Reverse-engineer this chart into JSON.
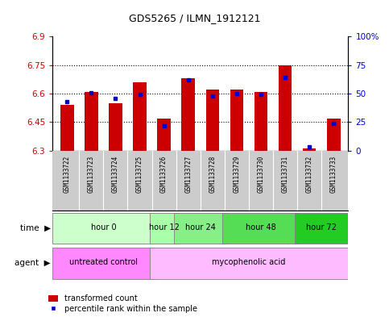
{
  "title": "GDS5265 / ILMN_1912121",
  "samples": [
    "GSM1133722",
    "GSM1133723",
    "GSM1133724",
    "GSM1133725",
    "GSM1133726",
    "GSM1133727",
    "GSM1133728",
    "GSM1133729",
    "GSM1133730",
    "GSM1133731",
    "GSM1133732",
    "GSM1133733"
  ],
  "transformed_count": [
    6.54,
    6.61,
    6.55,
    6.66,
    6.47,
    6.68,
    6.62,
    6.62,
    6.61,
    6.75,
    6.31,
    6.47
  ],
  "percentile_rank": [
    43,
    51,
    46,
    49,
    22,
    62,
    48,
    50,
    49,
    64,
    3,
    24
  ],
  "ylim_left": [
    6.3,
    6.9
  ],
  "ylim_right": [
    0,
    100
  ],
  "yticks_left": [
    6.3,
    6.45,
    6.6,
    6.75,
    6.9
  ],
  "yticks_right": [
    0,
    25,
    50,
    75,
    100
  ],
  "ytick_labels_left": [
    "6.3",
    "6.45",
    "6.6",
    "6.75",
    "6.9"
  ],
  "ytick_labels_right": [
    "0",
    "25",
    "50",
    "75",
    "100%"
  ],
  "bar_color": "#cc0000",
  "marker_color": "#0000cc",
  "base_value": 6.3,
  "time_groups": [
    {
      "label": "hour 0",
      "start": 0,
      "end": 4,
      "color": "#ccffcc"
    },
    {
      "label": "hour 12",
      "start": 4,
      "end": 5,
      "color": "#aaffaa"
    },
    {
      "label": "hour 24",
      "start": 5,
      "end": 7,
      "color": "#88ee88"
    },
    {
      "label": "hour 48",
      "start": 7,
      "end": 10,
      "color": "#55dd55"
    },
    {
      "label": "hour 72",
      "start": 10,
      "end": 12,
      "color": "#22cc22"
    }
  ],
  "agent_groups": [
    {
      "label": "untreated control",
      "start": 0,
      "end": 4,
      "color": "#ff88ff"
    },
    {
      "label": "mycophenolic acid",
      "start": 4,
      "end": 12,
      "color": "#ffaaff"
    }
  ],
  "grid_linestyle": ":",
  "grid_color": "black",
  "bar_width": 0.55,
  "bg_color": "#ffffff",
  "plot_bg": "#ffffff",
  "sample_bg": "#cccccc"
}
